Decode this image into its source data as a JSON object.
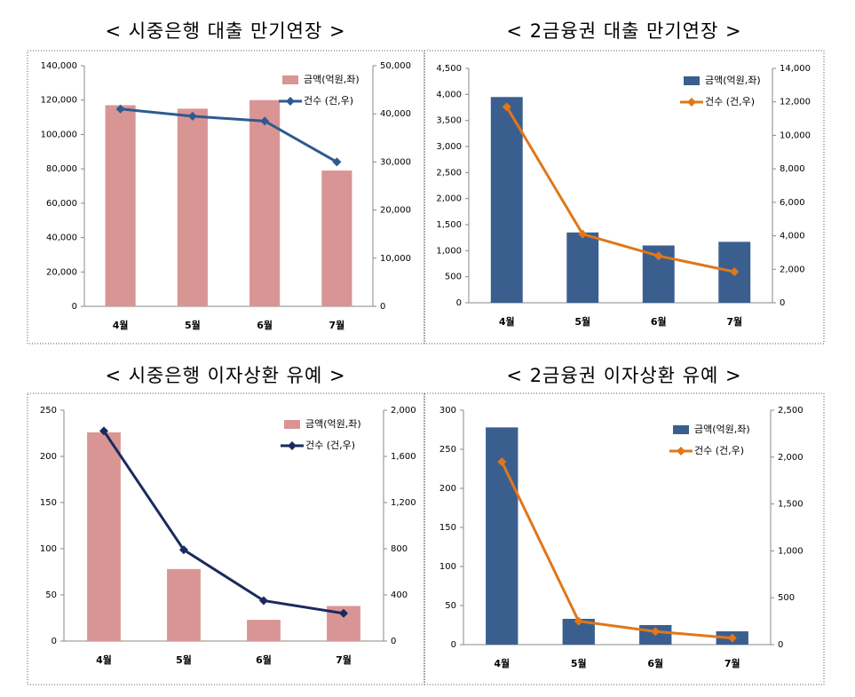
{
  "chart_data": [
    {
      "type": "combo",
      "title": "< 시중은행 대출 만기연장 >",
      "categories": [
        "4월",
        "5월",
        "6월",
        "7월"
      ],
      "series": [
        {
          "name": "금액(억원,좌)",
          "color": "#d99594",
          "type": "bar",
          "values": [
            117000,
            115000,
            120000,
            79000
          ]
        },
        {
          "name": "건수 (건,우)",
          "color": "#2e5b8f",
          "type": "line",
          "axis": "y2",
          "values": [
            41000,
            39500,
            38500,
            30000
          ]
        }
      ],
      "ylim": [
        0,
        140000
      ],
      "yticks": [
        0,
        {
          "value": 20000,
          "label": "20,000"
        },
        {
          "value": 40000,
          "label": "40,000"
        },
        {
          "value": 60000,
          "label": "60,000"
        },
        {
          "value": 80000,
          "label": "80,000"
        },
        {
          "value": 100000,
          "label": "100,000"
        },
        {
          "value": 120000,
          "label": "120,000"
        },
        {
          "value": 140000,
          "label": "140,000"
        }
      ],
      "y2lim": [
        0,
        50000
      ],
      "y2ticks": [
        0,
        {
          "value": 10000,
          "label": "10,000"
        },
        {
          "value": 20000,
          "label": "20,000"
        },
        {
          "value": 30000,
          "label": "30,000"
        },
        {
          "value": 40000,
          "label": "40,000"
        },
        {
          "value": 50000,
          "label": "50,000"
        }
      ]
    },
    {
      "type": "combo",
      "title": "< 2금융권 대출 만기연장 >",
      "categories": [
        "4월",
        "5월",
        "6월",
        "7월"
      ],
      "series": [
        {
          "name": "금액(억원,좌)",
          "color": "#3a5f8f",
          "type": "bar",
          "values": [
            3950,
            1350,
            1100,
            1170
          ]
        },
        {
          "name": "건수 (건,우)",
          "color": "#e0771a",
          "type": "line",
          "axis": "y2",
          "values": [
            11700,
            4100,
            2800,
            1850
          ]
        }
      ],
      "ylim": [
        0,
        4500
      ],
      "yticks": [
        0,
        500,
        {
          "value": 1000,
          "label": "1,000"
        },
        {
          "value": 1500,
          "label": "1,500"
        },
        {
          "value": 2000,
          "label": "2,000"
        },
        {
          "value": 2500,
          "label": "2,500"
        },
        {
          "value": 3000,
          "label": "3,000"
        },
        {
          "value": 3500,
          "label": "3,500"
        },
        {
          "value": 4000,
          "label": "4,000"
        },
        {
          "value": 4500,
          "label": "4,500"
        }
      ],
      "y2lim": [
        0,
        14000
      ],
      "y2ticks": [
        0,
        {
          "value": 2000,
          "label": "2,000"
        },
        {
          "value": 4000,
          "label": "4,000"
        },
        {
          "value": 6000,
          "label": "6,000"
        },
        {
          "value": 8000,
          "label": "8,000"
        },
        {
          "value": 10000,
          "label": "10,000"
        },
        {
          "value": 12000,
          "label": "12,000"
        },
        {
          "value": 14000,
          "label": "14,000"
        }
      ]
    },
    {
      "type": "combo",
      "title": "< 시중은행 이자상환 유예 >",
      "categories": [
        "4월",
        "5월",
        "6월",
        "7월"
      ],
      "series": [
        {
          "name": "금액(억원,좌)",
          "color": "#d99594",
          "type": "bar",
          "values": [
            226,
            78,
            23,
            38
          ]
        },
        {
          "name": "건수 (건,우)",
          "color": "#1a2a5e",
          "type": "line",
          "axis": "y2",
          "values": [
            1820,
            790,
            350,
            240
          ]
        }
      ],
      "ylim": [
        0,
        250
      ],
      "yticks": [
        0,
        50,
        100,
        150,
        200,
        250
      ],
      "y2lim": [
        0,
        2000
      ],
      "y2ticks": [
        0,
        400,
        800,
        {
          "value": 1200,
          "label": "1,200"
        },
        {
          "value": 1600,
          "label": "1,600"
        },
        {
          "value": 2000,
          "label": "2,000"
        }
      ]
    },
    {
      "type": "combo",
      "title": "< 2금융권 이자상환 유예 >",
      "categories": [
        "4월",
        "5월",
        "6월",
        "7월"
      ],
      "series": [
        {
          "name": "금액(억원,좌)",
          "color": "#3a5f8f",
          "type": "bar",
          "values": [
            278,
            33,
            25,
            17
          ]
        },
        {
          "name": "건수 (건,우)",
          "color": "#e0771a",
          "type": "line",
          "axis": "y2",
          "values": [
            1950,
            250,
            140,
            70
          ]
        }
      ],
      "ylim": [
        0,
        300
      ],
      "yticks": [
        0,
        50,
        100,
        150,
        200,
        250,
        300
      ],
      "y2lim": [
        0,
        2500
      ],
      "y2ticks": [
        0,
        500,
        {
          "value": 1000,
          "label": "1,000"
        },
        {
          "value": 1500,
          "label": "1,500"
        },
        {
          "value": 2000,
          "label": "2,000"
        },
        {
          "value": 2500,
          "label": "2,500"
        }
      ]
    }
  ]
}
